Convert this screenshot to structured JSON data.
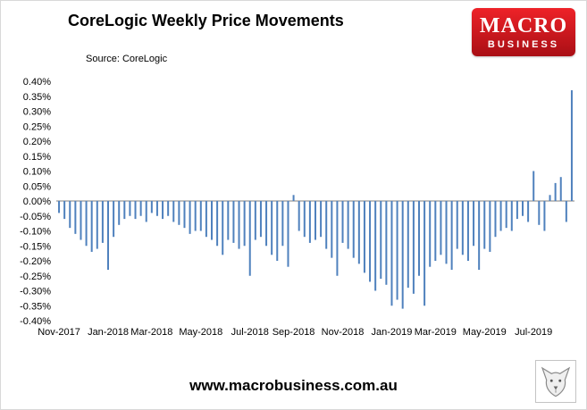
{
  "header": {
    "title": "CoreLogic Weekly Price Movements",
    "source": "Source: CoreLogic"
  },
  "logo": {
    "line1": "MACRO",
    "line2": "BUSINESS",
    "bg_color": "#c8121a"
  },
  "footer": {
    "url": "www.macrobusiness.com.au"
  },
  "chart_data": {
    "type": "bar",
    "title": "CoreLogic Weekly Price Movements",
    "source": "Source: CoreLogic",
    "xlabel": "",
    "ylabel": "",
    "ylim": [
      -0.4,
      0.4
    ],
    "ytick_step": 0.05,
    "grid": "off",
    "legend": "none",
    "bar_color": "#4f81bd",
    "axis_color": "#7f7f7f",
    "y_tick_labels": [
      "0.40%",
      "0.35%",
      "0.30%",
      "0.25%",
      "0.20%",
      "0.15%",
      "0.10%",
      "0.05%",
      "0.00%",
      "-0.05%",
      "-0.10%",
      "-0.15%",
      "-0.20%",
      "-0.25%",
      "-0.30%",
      "-0.35%",
      "-0.40%"
    ],
    "x_tick_labels": [
      "Nov-2017",
      "Jan-2018",
      "Mar-2018",
      "May-2018",
      "Jul-2018",
      "Sep-2018",
      "Nov-2018",
      "Jan-2019",
      "Mar-2019",
      "May-2019",
      "Jul-2019"
    ],
    "x_tick_positions": [
      0,
      9,
      17,
      26,
      35,
      43,
      52,
      61,
      69,
      78,
      87
    ],
    "series_name": "Weekly price movement (%)",
    "values": [
      -0.04,
      -0.06,
      -0.09,
      -0.11,
      -0.13,
      -0.15,
      -0.17,
      -0.16,
      -0.14,
      -0.23,
      -0.12,
      -0.08,
      -0.06,
      -0.05,
      -0.06,
      -0.05,
      -0.07,
      -0.04,
      -0.05,
      -0.06,
      -0.05,
      -0.07,
      -0.08,
      -0.09,
      -0.11,
      -0.1,
      -0.1,
      -0.12,
      -0.13,
      -0.15,
      -0.18,
      -0.13,
      -0.14,
      -0.16,
      -0.15,
      -0.25,
      -0.13,
      -0.12,
      -0.15,
      -0.18,
      -0.2,
      -0.15,
      -0.22,
      0.02,
      -0.1,
      -0.12,
      -0.14,
      -0.13,
      -0.12,
      -0.16,
      -0.19,
      -0.25,
      -0.14,
      -0.16,
      -0.19,
      -0.21,
      -0.24,
      -0.27,
      -0.3,
      -0.26,
      -0.28,
      -0.35,
      -0.33,
      -0.36,
      -0.29,
      -0.31,
      -0.25,
      -0.35,
      -0.22,
      -0.2,
      -0.18,
      -0.21,
      -0.23,
      -0.16,
      -0.18,
      -0.2,
      -0.15,
      -0.23,
      -0.16,
      -0.17,
      -0.12,
      -0.1,
      -0.09,
      -0.1,
      -0.06,
      -0.05,
      -0.07,
      0.1,
      -0.08,
      -0.1,
      0.02,
      0.06,
      0.08,
      -0.07,
      0.37
    ]
  }
}
